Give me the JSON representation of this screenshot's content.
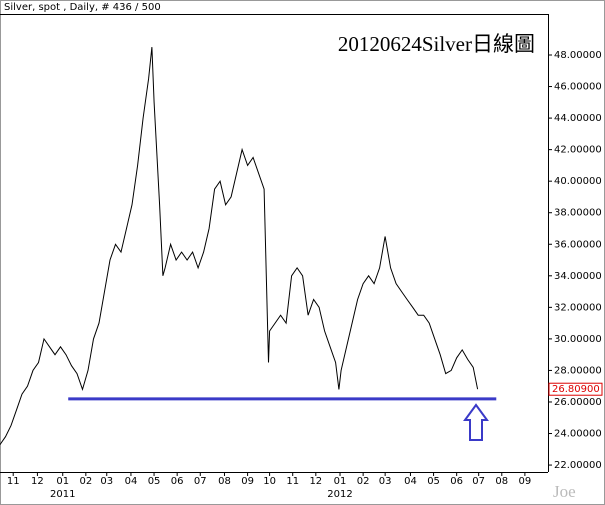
{
  "chart_data": {
    "type": "line",
    "header": "Silver, spot , Daily, # 436 / 500",
    "title": "20120624Silver日線圖",
    "watermark": "Joe",
    "color": "#000000",
    "x": [
      0,
      5,
      10,
      15,
      20,
      25,
      30,
      35,
      40,
      45,
      50,
      55,
      60,
      65,
      70,
      75,
      80,
      85,
      90,
      95,
      100,
      105,
      110,
      115,
      120,
      125,
      130,
      135,
      138,
      140,
      145,
      148,
      150,
      155,
      160,
      165,
      170,
      175,
      180,
      185,
      190,
      195,
      200,
      205,
      210,
      215,
      220,
      225,
      230,
      235,
      240,
      242,
      244,
      245,
      250,
      255,
      260,
      265,
      270,
      275,
      280,
      285,
      290,
      295,
      300,
      305,
      308,
      310,
      315,
      320,
      325,
      330,
      335,
      340,
      345,
      350,
      355,
      360,
      365,
      370,
      375,
      380,
      385,
      390,
      395,
      400,
      405,
      410,
      415,
      420,
      425,
      430,
      434
    ],
    "values": [
      23.3,
      23.8,
      24.5,
      25.5,
      26.5,
      27.0,
      28.0,
      28.5,
      30.0,
      29.5,
      29.0,
      29.5,
      29.0,
      28.3,
      27.8,
      26.8,
      28.0,
      30.0,
      31.0,
      33.0,
      35.0,
      36.0,
      35.5,
      37.0,
      38.5,
      41.0,
      44.0,
      46.5,
      48.5,
      45.0,
      38.5,
      34.0,
      34.5,
      36.0,
      35.0,
      35.5,
      35.0,
      35.5,
      34.5,
      35.5,
      37.0,
      39.5,
      40.0,
      38.5,
      39.0,
      40.5,
      42.0,
      41.0,
      41.5,
      40.5,
      39.5,
      34.0,
      28.5,
      30.5,
      31.0,
      31.5,
      31.0,
      34.0,
      34.5,
      34.0,
      31.5,
      32.5,
      32.0,
      30.5,
      29.5,
      28.5,
      26.8,
      28.0,
      29.5,
      31.0,
      32.5,
      33.5,
      34.0,
      33.5,
      34.5,
      36.5,
      34.5,
      33.5,
      33.0,
      32.5,
      32.0,
      31.5,
      31.5,
      31.0,
      30.0,
      29.0,
      27.8,
      28.0,
      28.8,
      29.3,
      28.7,
      28.2,
      26.81
    ],
    "xlim": [
      0,
      498
    ],
    "ylim": [
      21.56,
      50.6
    ],
    "xticks": [
      {
        "value": 12,
        "label": "11"
      },
      {
        "value": 34,
        "label": "12"
      },
      {
        "value": 57,
        "label": "01"
      },
      {
        "value": 78,
        "label": "02"
      },
      {
        "value": 97,
        "label": "03"
      },
      {
        "value": 119,
        "label": "04"
      },
      {
        "value": 140,
        "label": "05"
      },
      {
        "value": 161,
        "label": "06"
      },
      {
        "value": 182,
        "label": "07"
      },
      {
        "value": 204,
        "label": "08"
      },
      {
        "value": 225,
        "label": "09"
      },
      {
        "value": 245,
        "label": "10"
      },
      {
        "value": 266,
        "label": "11"
      },
      {
        "value": 287,
        "label": "12"
      },
      {
        "value": 309,
        "label": "01"
      },
      {
        "value": 330,
        "label": "02"
      },
      {
        "value": 350,
        "label": "03"
      },
      {
        "value": 373,
        "label": "04"
      },
      {
        "value": 394,
        "label": "05"
      },
      {
        "value": 415,
        "label": "06"
      },
      {
        "value": 435,
        "label": "07"
      },
      {
        "value": 456,
        "label": "08"
      },
      {
        "value": 477,
        "label": "09"
      }
    ],
    "year_ticks": [
      {
        "value": 57,
        "label": "2011"
      },
      {
        "value": 309,
        "label": "2012"
      }
    ],
    "yticks": [
      {
        "value": 22,
        "label": "22.00000"
      },
      {
        "value": 24,
        "label": "24.00000"
      },
      {
        "value": 26,
        "label": "26.00000"
      },
      {
        "value": 28,
        "label": "28.00000"
      },
      {
        "value": 30,
        "label": "30.00000"
      },
      {
        "value": 32,
        "label": "32.00000"
      },
      {
        "value": 34,
        "label": "34.00000"
      },
      {
        "value": 36,
        "label": "36.00000"
      },
      {
        "value": 38,
        "label": "38.00000"
      },
      {
        "value": 40,
        "label": "40.00000"
      },
      {
        "value": 42,
        "label": "42.00000"
      },
      {
        "value": 44,
        "label": "44.00000"
      },
      {
        "value": 46,
        "label": "46.00000"
      },
      {
        "value": 48,
        "label": "48.00000"
      }
    ],
    "last_value": {
      "value": 26.809,
      "label": "26.80900"
    },
    "support": {
      "value": 26.2,
      "x": [
        62,
        451
      ],
      "color": "#3a3ac8"
    }
  }
}
